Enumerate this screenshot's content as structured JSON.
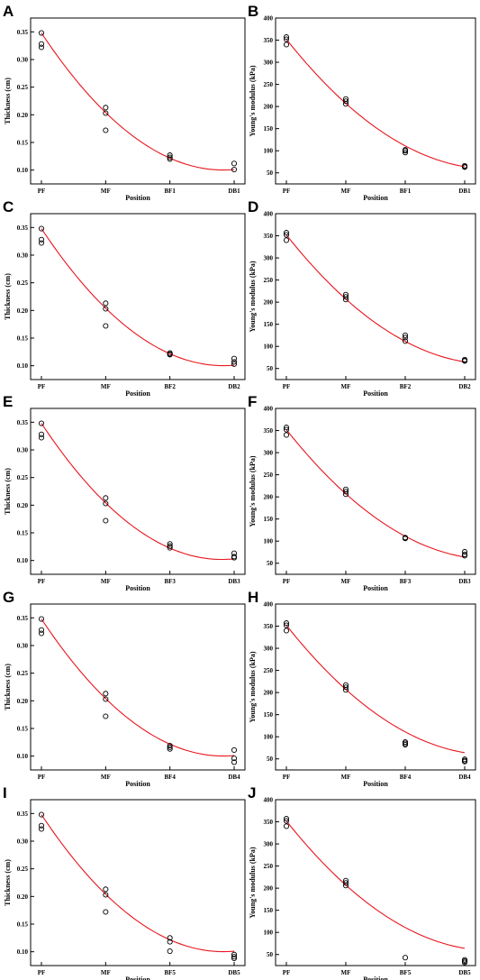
{
  "chart_data": [
    {
      "panel": "A",
      "type": "scatter",
      "xlabel": "Position",
      "ylabel": "Thickness (cm)",
      "categories": [
        "PF",
        "MF",
        "BF1",
        "DB1"
      ],
      "ylim": [
        0.075,
        0.375
      ],
      "yticks": [
        "0.10",
        "0.15",
        "0.20",
        "0.25",
        "0.30",
        "0.35"
      ],
      "points": [
        [
          0,
          0.348
        ],
        [
          0,
          0.328
        ],
        [
          0,
          0.322
        ],
        [
          1,
          0.213
        ],
        [
          1,
          0.203
        ],
        [
          1,
          0.172
        ],
        [
          2,
          0.127
        ],
        [
          2,
          0.123
        ],
        [
          2,
          0.12
        ],
        [
          3,
          0.112
        ],
        [
          3,
          0.101
        ]
      ],
      "fit": [
        0.348,
        0.204,
        0.123,
        0.101
      ],
      "fit_color": "#e8141c"
    },
    {
      "panel": "B",
      "type": "scatter",
      "xlabel": "Position",
      "ylabel": "Young's modulus (kPa)",
      "categories": [
        "PF",
        "MF",
        "BF1",
        "DB1"
      ],
      "ylim": [
        25,
        400
      ],
      "yticks": [
        "50",
        "100",
        "150",
        "200",
        "250",
        "300",
        "350",
        "400"
      ],
      "points": [
        [
          0,
          357
        ],
        [
          0,
          352
        ],
        [
          0,
          340
        ],
        [
          1,
          217
        ],
        [
          1,
          212
        ],
        [
          1,
          206
        ],
        [
          2,
          102
        ],
        [
          2,
          100
        ],
        [
          2,
          96
        ],
        [
          3,
          66
        ],
        [
          3,
          64
        ],
        [
          3,
          63
        ]
      ],
      "fit": [
        352,
        207,
        100,
        64
      ],
      "fit_color": "#e8141c"
    },
    {
      "panel": "C",
      "type": "scatter",
      "xlabel": "Position",
      "ylabel": "Thickness (cm)",
      "categories": [
        "PF",
        "MF",
        "BF2",
        "DB2"
      ],
      "ylim": [
        0.075,
        0.375
      ],
      "yticks": [
        "0.10",
        "0.15",
        "0.20",
        "0.25",
        "0.30",
        "0.35"
      ],
      "points": [
        [
          0,
          0.348
        ],
        [
          0,
          0.328
        ],
        [
          0,
          0.322
        ],
        [
          1,
          0.213
        ],
        [
          1,
          0.203
        ],
        [
          1,
          0.172
        ],
        [
          2,
          0.123
        ],
        [
          2,
          0.121
        ],
        [
          2,
          0.12
        ],
        [
          3,
          0.113
        ],
        [
          3,
          0.107
        ],
        [
          3,
          0.103
        ]
      ],
      "fit": [
        0.348,
        0.204,
        0.121,
        0.101
      ],
      "fit_color": "#e8141c"
    },
    {
      "panel": "D",
      "type": "scatter",
      "xlabel": "Position",
      "ylabel": "Young's modulus (kPa)",
      "categories": [
        "PF",
        "MF",
        "BF2",
        "DB2"
      ],
      "ylim": [
        25,
        400
      ],
      "yticks": [
        "50",
        "100",
        "150",
        "200",
        "250",
        "300",
        "350",
        "400"
      ],
      "points": [
        [
          0,
          357
        ],
        [
          0,
          352
        ],
        [
          0,
          340
        ],
        [
          1,
          217
        ],
        [
          1,
          212
        ],
        [
          1,
          206
        ],
        [
          2,
          125
        ],
        [
          2,
          120
        ],
        [
          2,
          112
        ],
        [
          3,
          70
        ],
        [
          3,
          68
        ],
        [
          3,
          67
        ]
      ],
      "fit": [
        352,
        207,
        113,
        65
      ],
      "fit_color": "#e8141c"
    },
    {
      "panel": "E",
      "type": "scatter",
      "xlabel": "Position",
      "ylabel": "Thickness (cm)",
      "categories": [
        "PF",
        "MF",
        "BF3",
        "DB3"
      ],
      "ylim": [
        0.075,
        0.375
      ],
      "yticks": [
        "0.10",
        "0.15",
        "0.20",
        "0.25",
        "0.30",
        "0.35"
      ],
      "points": [
        [
          0,
          0.348
        ],
        [
          0,
          0.328
        ],
        [
          0,
          0.322
        ],
        [
          1,
          0.213
        ],
        [
          1,
          0.203
        ],
        [
          1,
          0.172
        ],
        [
          2,
          0.13
        ],
        [
          2,
          0.126
        ],
        [
          2,
          0.123
        ],
        [
          3,
          0.113
        ],
        [
          3,
          0.107
        ],
        [
          3,
          0.105
        ]
      ],
      "fit": [
        0.348,
        0.204,
        0.124,
        0.103
      ],
      "fit_color": "#e8141c"
    },
    {
      "panel": "F",
      "type": "scatter",
      "xlabel": "Position",
      "ylabel": "Young's modulus (kPa)",
      "categories": [
        "PF",
        "MF",
        "BF3",
        "DB3"
      ],
      "ylim": [
        25,
        400
      ],
      "yticks": [
        "50",
        "100",
        "150",
        "200",
        "250",
        "300",
        "350",
        "400"
      ],
      "points": [
        [
          0,
          357
        ],
        [
          0,
          352
        ],
        [
          0,
          340
        ],
        [
          1,
          217
        ],
        [
          1,
          212
        ],
        [
          1,
          206
        ],
        [
          2,
          108
        ],
        [
          2,
          107
        ],
        [
          2,
          106
        ],
        [
          3,
          76
        ],
        [
          3,
          70
        ],
        [
          3,
          67
        ]
      ],
      "fit": [
        352,
        207,
        105,
        64
      ],
      "fit_color": "#e8141c"
    },
    {
      "panel": "G",
      "type": "scatter",
      "xlabel": "Position",
      "ylabel": "Thickness (cm)",
      "categories": [
        "PF",
        "MF",
        "BF4",
        "DB4"
      ],
      "ylim": [
        0.075,
        0.375
      ],
      "yticks": [
        "0.10",
        "0.15",
        "0.20",
        "0.25",
        "0.30",
        "0.35"
      ],
      "points": [
        [
          0,
          0.348
        ],
        [
          0,
          0.328
        ],
        [
          0,
          0.322
        ],
        [
          1,
          0.213
        ],
        [
          1,
          0.203
        ],
        [
          1,
          0.172
        ],
        [
          2,
          0.119
        ],
        [
          2,
          0.116
        ],
        [
          2,
          0.113
        ],
        [
          3,
          0.111
        ],
        [
          3,
          0.096
        ],
        [
          3,
          0.089
        ]
      ],
      "fit": [
        0.348,
        0.204,
        0.119,
        0.101
      ],
      "fit_color": "#e8141c"
    },
    {
      "panel": "H",
      "type": "scatter",
      "xlabel": "Position",
      "ylabel": "Young's modulus (kPa)",
      "categories": [
        "PF",
        "MF",
        "BF4",
        "DB4"
      ],
      "ylim": [
        25,
        400
      ],
      "yticks": [
        "50",
        "100",
        "150",
        "200",
        "250",
        "300",
        "350",
        "400"
      ],
      "points": [
        [
          0,
          357
        ],
        [
          0,
          352
        ],
        [
          0,
          340
        ],
        [
          1,
          217
        ],
        [
          1,
          212
        ],
        [
          1,
          206
        ],
        [
          2,
          88
        ],
        [
          2,
          85
        ],
        [
          2,
          82
        ],
        [
          3,
          49
        ],
        [
          3,
          46
        ],
        [
          3,
          44
        ]
      ],
      "fit": [
        352,
        207,
        103,
        64
      ],
      "fit_color": "#e8141c"
    },
    {
      "panel": "I",
      "type": "scatter",
      "xlabel": "Position",
      "ylabel": "Thickness (cm)",
      "categories": [
        "PF",
        "MF",
        "BF5",
        "DB5"
      ],
      "ylim": [
        0.075,
        0.375
      ],
      "yticks": [
        "0.10",
        "0.15",
        "0.20",
        "0.25",
        "0.30",
        "0.35"
      ],
      "points": [
        [
          0,
          0.348
        ],
        [
          0,
          0.328
        ],
        [
          0,
          0.322
        ],
        [
          1,
          0.213
        ],
        [
          1,
          0.203
        ],
        [
          1,
          0.172
        ],
        [
          2,
          0.125
        ],
        [
          2,
          0.118
        ],
        [
          2,
          0.101
        ],
        [
          3,
          0.095
        ],
        [
          3,
          0.091
        ],
        [
          3,
          0.088
        ]
      ],
      "fit": [
        0.348,
        0.204,
        0.119,
        0.101
      ],
      "fit_color": "#e8141c"
    },
    {
      "panel": "J",
      "type": "scatter",
      "xlabel": "Position",
      "ylabel": "Young's modulus (kPa)",
      "categories": [
        "PF",
        "MF",
        "BF5",
        "DB5"
      ],
      "ylim": [
        25,
        400
      ],
      "yticks": [
        "50",
        "100",
        "150",
        "200",
        "250",
        "300",
        "350",
        "400"
      ],
      "points": [
        [
          0,
          357
        ],
        [
          0,
          352
        ],
        [
          0,
          340
        ],
        [
          1,
          217
        ],
        [
          1,
          212
        ],
        [
          1,
          206
        ],
        [
          2,
          43
        ],
        [
          3,
          38
        ],
        [
          3,
          35
        ],
        [
          3,
          32
        ]
      ],
      "fit": [
        352,
        207,
        103,
        64
      ],
      "fit_color": "#e8141c"
    }
  ]
}
